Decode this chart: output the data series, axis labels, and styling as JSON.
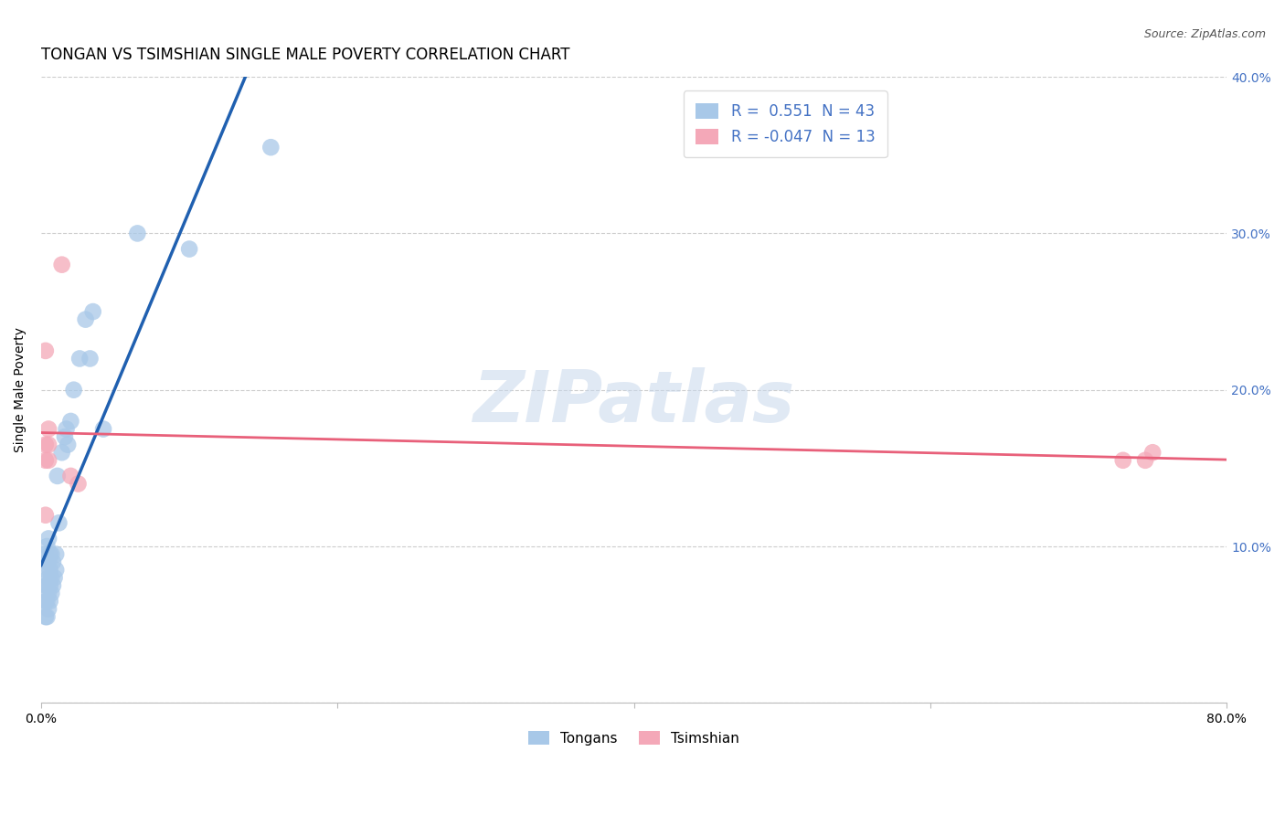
{
  "title": "TONGAN VS TSIMSHIAN SINGLE MALE POVERTY CORRELATION CHART",
  "source": "Source: ZipAtlas.com",
  "ylabel": "Single Male Poverty",
  "xlim": [
    0.0,
    0.8
  ],
  "ylim": [
    0.0,
    0.4
  ],
  "xtick_positions": [
    0.0,
    0.2,
    0.4,
    0.6,
    0.8
  ],
  "xtick_labels": [
    "0.0%",
    "",
    "",
    "",
    "80.0%"
  ],
  "ytick_positions": [
    0.0,
    0.1,
    0.2,
    0.3,
    0.4
  ],
  "ytick_labels_right": [
    "",
    "10.0%",
    "20.0%",
    "30.0%",
    "40.0%"
  ],
  "tongan_R": 0.551,
  "tongan_N": 43,
  "tsimshian_R": -0.047,
  "tsimshian_N": 13,
  "tongan_color": "#A8C8E8",
  "tsimshian_color": "#F4A8B8",
  "tongan_line_color": "#2060B0",
  "tsimshian_line_color": "#E8607A",
  "background_color": "#FFFFFF",
  "tongan_x": [
    0.003,
    0.003,
    0.003,
    0.003,
    0.003,
    0.004,
    0.004,
    0.004,
    0.004,
    0.004,
    0.005,
    0.005,
    0.005,
    0.005,
    0.005,
    0.006,
    0.006,
    0.006,
    0.006,
    0.007,
    0.007,
    0.007,
    0.008,
    0.008,
    0.009,
    0.01,
    0.01,
    0.011,
    0.012,
    0.014,
    0.016,
    0.017,
    0.018,
    0.02,
    0.022,
    0.026,
    0.03,
    0.033,
    0.035,
    0.042,
    0.065,
    0.1,
    0.155
  ],
  "tongan_y": [
    0.055,
    0.065,
    0.075,
    0.085,
    0.095,
    0.055,
    0.065,
    0.075,
    0.09,
    0.1,
    0.06,
    0.07,
    0.08,
    0.09,
    0.105,
    0.065,
    0.075,
    0.085,
    0.095,
    0.07,
    0.08,
    0.095,
    0.075,
    0.09,
    0.08,
    0.085,
    0.095,
    0.145,
    0.115,
    0.16,
    0.17,
    0.175,
    0.165,
    0.18,
    0.2,
    0.22,
    0.245,
    0.22,
    0.25,
    0.175,
    0.3,
    0.29,
    0.355
  ],
  "tsimshian_x": [
    0.003,
    0.003,
    0.003,
    0.003,
    0.005,
    0.005,
    0.005,
    0.014,
    0.02,
    0.025,
    0.73,
    0.745,
    0.75
  ],
  "tsimshian_y": [
    0.12,
    0.155,
    0.165,
    0.225,
    0.155,
    0.165,
    0.175,
    0.28,
    0.145,
    0.14,
    0.155,
    0.155,
    0.16
  ],
  "grid_color": "#CCCCCC",
  "title_fontsize": 12,
  "label_fontsize": 10,
  "tick_fontsize": 10,
  "legend_fontsize": 12,
  "source_fontsize": 9
}
